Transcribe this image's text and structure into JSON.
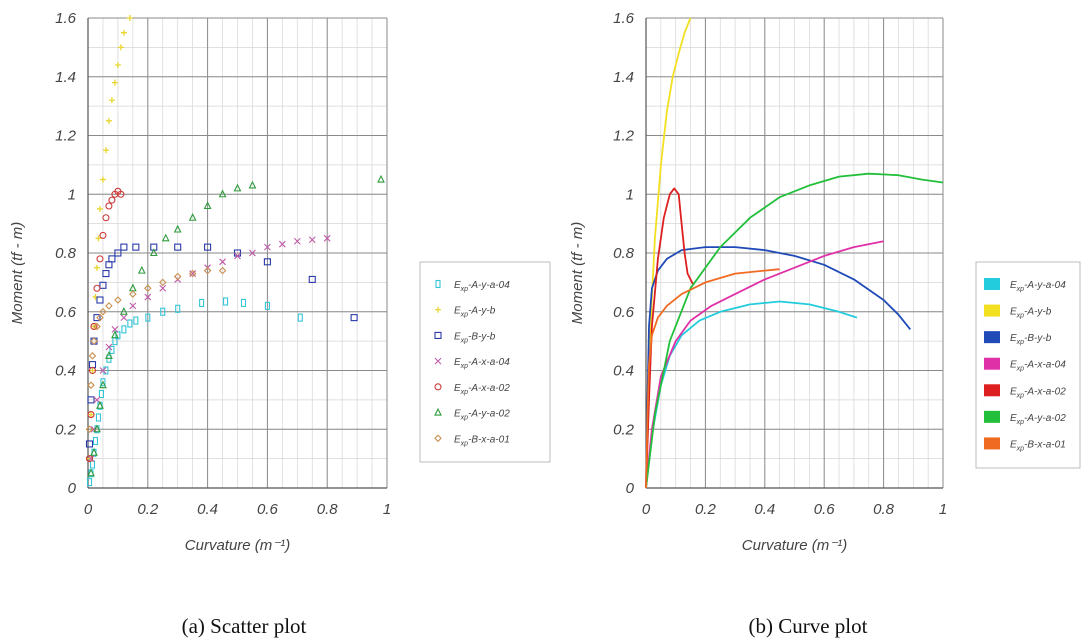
{
  "captions": {
    "a": "(a)  Scatter plot",
    "b": "(b)  Curve plot"
  },
  "chart_data": [
    {
      "type": "scatter",
      "xlabel": "Curvature (m⁻¹)",
      "ylabel": "Moment (tf - m)",
      "xlim": [
        0,
        1
      ],
      "ylim": [
        0,
        1.6
      ],
      "x_ticks": [
        "0",
        "0.2",
        "0.4",
        "0.6",
        "0.8",
        "1"
      ],
      "y_ticks": [
        "0",
        "0.2",
        "0.4",
        "0.6",
        "0.8",
        "1",
        "1.2",
        "1.4",
        "1.6"
      ],
      "grid": true,
      "legend_position": "right",
      "series": [
        {
          "name": "Exp-A-y-a-04",
          "sub": "xp",
          "rest": "-A-y-a-04",
          "color": "#34c5d8",
          "marker": "I-beam",
          "points": [
            [
              0.005,
              0.02
            ],
            [
              0.01,
              0.05
            ],
            [
              0.015,
              0.08
            ],
            [
              0.02,
              0.12
            ],
            [
              0.025,
              0.16
            ],
            [
              0.03,
              0.2
            ],
            [
              0.035,
              0.24
            ],
            [
              0.04,
              0.28
            ],
            [
              0.045,
              0.32
            ],
            [
              0.05,
              0.36
            ],
            [
              0.06,
              0.4
            ],
            [
              0.07,
              0.44
            ],
            [
              0.08,
              0.47
            ],
            [
              0.09,
              0.5
            ],
            [
              0.1,
              0.52
            ],
            [
              0.12,
              0.54
            ],
            [
              0.14,
              0.56
            ],
            [
              0.16,
              0.57
            ],
            [
              0.2,
              0.58
            ],
            [
              0.25,
              0.6
            ],
            [
              0.3,
              0.61
            ],
            [
              0.38,
              0.63
            ],
            [
              0.46,
              0.635
            ],
            [
              0.52,
              0.63
            ],
            [
              0.6,
              0.62
            ],
            [
              0.71,
              0.58
            ]
          ]
        },
        {
          "name": "Exp-A-y-b",
          "sub": "xp",
          "rest": "-A-y-b",
          "color": "#e8d630",
          "marker": "plus",
          "points": [
            [
              0.005,
              0.1
            ],
            [
              0.01,
              0.25
            ],
            [
              0.015,
              0.4
            ],
            [
              0.02,
              0.55
            ],
            [
              0.025,
              0.65
            ],
            [
              0.03,
              0.75
            ],
            [
              0.035,
              0.85
            ],
            [
              0.04,
              0.95
            ],
            [
              0.05,
              1.05
            ],
            [
              0.06,
              1.15
            ],
            [
              0.07,
              1.25
            ],
            [
              0.08,
              1.32
            ],
            [
              0.09,
              1.38
            ],
            [
              0.1,
              1.44
            ],
            [
              0.11,
              1.5
            ],
            [
              0.12,
              1.55
            ],
            [
              0.14,
              1.6
            ]
          ]
        },
        {
          "name": "Exp-B-y-b",
          "sub": "xp",
          "rest": "-B-y-b",
          "color": "#2a39a8",
          "marker": "square",
          "points": [
            [
              0.005,
              0.15
            ],
            [
              0.01,
              0.3
            ],
            [
              0.015,
              0.42
            ],
            [
              0.02,
              0.5
            ],
            [
              0.03,
              0.58
            ],
            [
              0.04,
              0.64
            ],
            [
              0.05,
              0.69
            ],
            [
              0.06,
              0.73
            ],
            [
              0.07,
              0.76
            ],
            [
              0.08,
              0.78
            ],
            [
              0.1,
              0.8
            ],
            [
              0.12,
              0.82
            ],
            [
              0.16,
              0.82
            ],
            [
              0.22,
              0.82
            ],
            [
              0.3,
              0.82
            ],
            [
              0.4,
              0.82
            ],
            [
              0.5,
              0.8
            ],
            [
              0.6,
              0.77
            ],
            [
              0.75,
              0.71
            ],
            [
              0.89,
              0.58
            ]
          ]
        },
        {
          "name": "Exp-A-x-a-04",
          "sub": "xp",
          "rest": "-A-x-a-04",
          "color": "#c05aa8",
          "marker": "x",
          "points": [
            [
              0.01,
              0.1
            ],
            [
              0.02,
              0.2
            ],
            [
              0.03,
              0.3
            ],
            [
              0.05,
              0.4
            ],
            [
              0.07,
              0.48
            ],
            [
              0.09,
              0.54
            ],
            [
              0.12,
              0.58
            ],
            [
              0.15,
              0.62
            ],
            [
              0.2,
              0.65
            ],
            [
              0.25,
              0.68
            ],
            [
              0.3,
              0.71
            ],
            [
              0.35,
              0.73
            ],
            [
              0.4,
              0.75
            ],
            [
              0.45,
              0.77
            ],
            [
              0.5,
              0.79
            ],
            [
              0.55,
              0.8
            ],
            [
              0.6,
              0.82
            ],
            [
              0.65,
              0.83
            ],
            [
              0.7,
              0.84
            ],
            [
              0.75,
              0.845
            ],
            [
              0.8,
              0.85
            ]
          ]
        },
        {
          "name": "Exp-A-x-a-02",
          "sub": "xp",
          "rest": "-A-x-a-02",
          "color": "#cc3636",
          "marker": "circle",
          "points": [
            [
              0.005,
              0.1
            ],
            [
              0.01,
              0.25
            ],
            [
              0.015,
              0.4
            ],
            [
              0.02,
              0.55
            ],
            [
              0.03,
              0.68
            ],
            [
              0.04,
              0.78
            ],
            [
              0.05,
              0.86
            ],
            [
              0.06,
              0.92
            ],
            [
              0.07,
              0.96
            ],
            [
              0.08,
              0.98
            ],
            [
              0.09,
              1.0
            ],
            [
              0.1,
              1.01
            ],
            [
              0.11,
              1.0
            ]
          ]
        },
        {
          "name": "Exp-A-y-a-02",
          "sub": "xp",
          "rest": "-A-y-a-02",
          "color": "#2f9a3c",
          "marker": "triangle",
          "points": [
            [
              0.01,
              0.05
            ],
            [
              0.02,
              0.12
            ],
            [
              0.03,
              0.2
            ],
            [
              0.04,
              0.28
            ],
            [
              0.05,
              0.35
            ],
            [
              0.07,
              0.45
            ],
            [
              0.09,
              0.52
            ],
            [
              0.12,
              0.6
            ],
            [
              0.15,
              0.68
            ],
            [
              0.18,
              0.74
            ],
            [
              0.22,
              0.8
            ],
            [
              0.26,
              0.85
            ],
            [
              0.3,
              0.88
            ],
            [
              0.35,
              0.92
            ],
            [
              0.4,
              0.96
            ],
            [
              0.45,
              1.0
            ],
            [
              0.5,
              1.02
            ],
            [
              0.55,
              1.03
            ],
            [
              0.98,
              1.05
            ]
          ]
        },
        {
          "name": "Exp-B-x-a-01",
          "sub": "xp",
          "rest": "-B-x-a-01",
          "color": "#c89050",
          "marker": "diamond",
          "points": [
            [
              0.005,
              0.2
            ],
            [
              0.01,
              0.35
            ],
            [
              0.015,
              0.45
            ],
            [
              0.02,
              0.5
            ],
            [
              0.03,
              0.55
            ],
            [
              0.04,
              0.58
            ],
            [
              0.05,
              0.6
            ],
            [
              0.07,
              0.62
            ],
            [
              0.1,
              0.64
            ],
            [
              0.15,
              0.66
            ],
            [
              0.2,
              0.68
            ],
            [
              0.25,
              0.7
            ],
            [
              0.3,
              0.72
            ],
            [
              0.35,
              0.73
            ],
            [
              0.4,
              0.74
            ],
            [
              0.45,
              0.74
            ]
          ]
        }
      ]
    },
    {
      "type": "line",
      "xlabel": "Curvature (m⁻¹)",
      "ylabel": "Moment (tf - m)",
      "xlim": [
        0,
        1
      ],
      "ylim": [
        0,
        1.6
      ],
      "x_ticks": [
        "0",
        "0.2",
        "0.4",
        "0.6",
        "0.8",
        "1"
      ],
      "y_ticks": [
        "0",
        "0.2",
        "0.4",
        "0.6",
        "0.8",
        "1",
        "1.2",
        "1.4",
        "1.6"
      ],
      "grid": true,
      "legend_position": "right",
      "series": [
        {
          "name": "Exp-A-y-a-04",
          "sub": "xp",
          "rest": "-A-y-a-04",
          "color": "#22ccdd",
          "points": [
            [
              0,
              0
            ],
            [
              0.02,
              0.18
            ],
            [
              0.05,
              0.35
            ],
            [
              0.08,
              0.45
            ],
            [
              0.12,
              0.52
            ],
            [
              0.18,
              0.57
            ],
            [
              0.25,
              0.6
            ],
            [
              0.35,
              0.625
            ],
            [
              0.45,
              0.635
            ],
            [
              0.55,
              0.625
            ],
            [
              0.65,
              0.6
            ],
            [
              0.71,
              0.58
            ]
          ]
        },
        {
          "name": "Exp-A-y-b",
          "sub": "xp",
          "rest": "-A-y-b",
          "color": "#f2e020",
          "points": [
            [
              0,
              0
            ],
            [
              0.005,
              0.2
            ],
            [
              0.01,
              0.4
            ],
            [
              0.02,
              0.65
            ],
            [
              0.03,
              0.85
            ],
            [
              0.05,
              1.1
            ],
            [
              0.07,
              1.28
            ],
            [
              0.09,
              1.4
            ],
            [
              0.11,
              1.48
            ],
            [
              0.13,
              1.55
            ],
            [
              0.15,
              1.6
            ]
          ]
        },
        {
          "name": "Exp-B-y-b",
          "sub": "xp",
          "rest": "-B-y-b",
          "color": "#1f4ab8",
          "points": [
            [
              0,
              0
            ],
            [
              0.005,
              0.3
            ],
            [
              0.01,
              0.55
            ],
            [
              0.02,
              0.68
            ],
            [
              0.04,
              0.74
            ],
            [
              0.07,
              0.78
            ],
            [
              0.12,
              0.81
            ],
            [
              0.2,
              0.82
            ],
            [
              0.3,
              0.82
            ],
            [
              0.4,
              0.81
            ],
            [
              0.5,
              0.79
            ],
            [
              0.6,
              0.76
            ],
            [
              0.7,
              0.71
            ],
            [
              0.8,
              0.64
            ],
            [
              0.85,
              0.59
            ],
            [
              0.89,
              0.54
            ]
          ]
        },
        {
          "name": "Exp-A-x-a-04",
          "sub": "xp",
          "rest": "-A-x-a-04",
          "color": "#e030a8",
          "points": [
            [
              0,
              0
            ],
            [
              0.02,
              0.2
            ],
            [
              0.05,
              0.38
            ],
            [
              0.1,
              0.5
            ],
            [
              0.15,
              0.57
            ],
            [
              0.22,
              0.62
            ],
            [
              0.3,
              0.66
            ],
            [
              0.4,
              0.71
            ],
            [
              0.5,
              0.75
            ],
            [
              0.6,
              0.79
            ],
            [
              0.7,
              0.82
            ],
            [
              0.8,
              0.84
            ]
          ]
        },
        {
          "name": "Exp-A-x-a-02",
          "sub": "xp",
          "rest": "-A-x-a-02",
          "color": "#dd1f1f",
          "points": [
            [
              0,
              0
            ],
            [
              0.01,
              0.3
            ],
            [
              0.02,
              0.55
            ],
            [
              0.04,
              0.78
            ],
            [
              0.06,
              0.92
            ],
            [
              0.08,
              1.0
            ],
            [
              0.095,
              1.02
            ],
            [
              0.11,
              1.0
            ],
            [
              0.12,
              0.9
            ],
            [
              0.13,
              0.8
            ],
            [
              0.14,
              0.73
            ],
            [
              0.16,
              0.69
            ]
          ]
        },
        {
          "name": "Exp-A-y-a-02",
          "sub": "xp",
          "rest": "-A-y-a-02",
          "color": "#22c03a",
          "points": [
            [
              0,
              0
            ],
            [
              0.03,
              0.25
            ],
            [
              0.08,
              0.5
            ],
            [
              0.15,
              0.68
            ],
            [
              0.25,
              0.82
            ],
            [
              0.35,
              0.92
            ],
            [
              0.45,
              0.99
            ],
            [
              0.55,
              1.03
            ],
            [
              0.65,
              1.06
            ],
            [
              0.75,
              1.07
            ],
            [
              0.85,
              1.065
            ],
            [
              0.93,
              1.05
            ],
            [
              1.0,
              1.04
            ]
          ]
        },
        {
          "name": "Exp-B-x-a-01",
          "sub": "xp",
          "rest": "-B-x-a-01",
          "color": "#f06a22",
          "points": [
            [
              0,
              0
            ],
            [
              0.005,
              0.25
            ],
            [
              0.01,
              0.42
            ],
            [
              0.02,
              0.52
            ],
            [
              0.04,
              0.58
            ],
            [
              0.07,
              0.62
            ],
            [
              0.12,
              0.66
            ],
            [
              0.2,
              0.7
            ],
            [
              0.3,
              0.73
            ],
            [
              0.4,
              0.74
            ],
            [
              0.45,
              0.745
            ]
          ]
        }
      ]
    }
  ]
}
